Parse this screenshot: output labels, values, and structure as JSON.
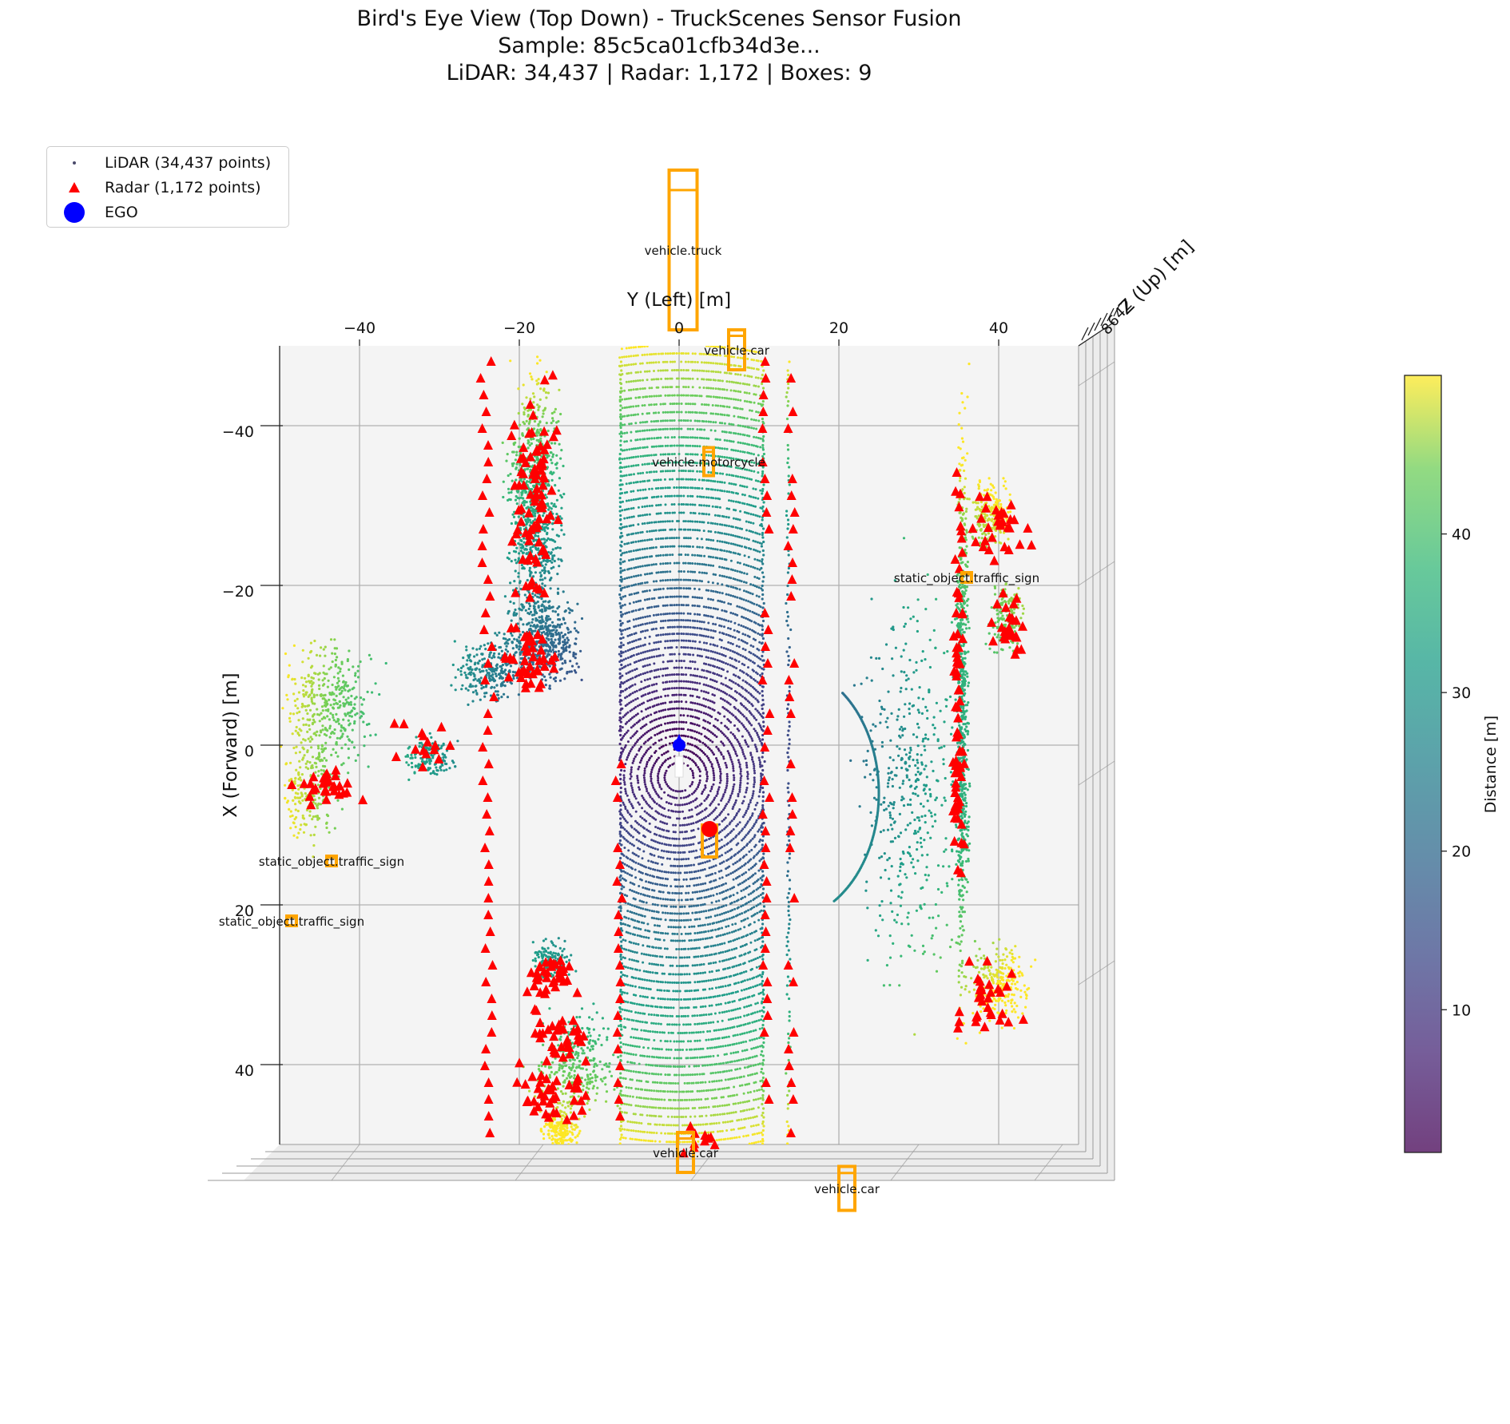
{
  "title_lines": [
    "Bird's Eye View (Top Down) - TruckScenes Sensor Fusion",
    "Sample: 85c5ca01cfb34d3e...",
    "LiDAR: 34,437 | Radar: 1,172 | Boxes: 9"
  ],
  "legend": {
    "placement": "top-left",
    "items": [
      {
        "label": "LiDAR (34,437 points)",
        "marker": "dot",
        "color": "#4a4a6a"
      },
      {
        "label": "Radar (1,172 points)",
        "marker": "triangle",
        "color": "#ff0000"
      },
      {
        "label": "EGO",
        "marker": "circle",
        "color": "#0000ff"
      }
    ]
  },
  "chart_data": {
    "type": "scatter",
    "view": "top-down 3D",
    "xlabel": "Y (Left) [m]",
    "ylabel": "X (Forward) [m]",
    "zlabel": "Z (Up) [m]",
    "y_left_range": [
      -50,
      50
    ],
    "x_forward_range": [
      -50,
      50
    ],
    "y_left_ticks": [
      -40,
      -20,
      0,
      20,
      40
    ],
    "x_forward_ticks": [
      -40,
      -20,
      0,
      20,
      40
    ],
    "z_tick_labels": [
      "2",
      "4",
      "6",
      "8"
    ],
    "grid": true,
    "colorbar": {
      "label": "Distance [m]",
      "range": [
        1,
        50
      ],
      "ticks": [
        10,
        20,
        30,
        40
      ],
      "colormap": "viridis"
    },
    "colors": {
      "radar": "#ff0000",
      "box": "#ffa500",
      "ego": "#0000ff",
      "pane": "#f4f4f4",
      "grid": "#b0b0b0"
    },
    "counts": {
      "lidar": "34,437",
      "radar": "1,172",
      "boxes": "9"
    },
    "boxes": [
      {
        "label": "vehicle.truck",
        "y": 0.5,
        "x": -62,
        "w": 3.5,
        "l": 20
      },
      {
        "label": "vehicle.car",
        "y": 7.2,
        "x": -49.5,
        "w": 2,
        "l": 5
      },
      {
        "label": "vehicle.motorcycle",
        "y": 3.7,
        "x": -35.5,
        "w": 1.2,
        "l": 3.5
      },
      {
        "label": "static_object.traffic_sign",
        "y": 36,
        "x": -21,
        "w": 1.2,
        "l": 1.2
      },
      {
        "label": "static_object.traffic_sign",
        "y": -43.5,
        "x": 14.5,
        "w": 1.2,
        "l": 1.2
      },
      {
        "label": "static_object.traffic_sign",
        "y": -48.5,
        "x": 22,
        "w": 1.2,
        "l": 1.2
      },
      {
        "label": "vehicle.car",
        "y": 0.8,
        "x": 51,
        "w": 2,
        "l": 5
      },
      {
        "label": "vehicle.car",
        "y": 21,
        "x": 55.5,
        "w": 2,
        "l": 5.5
      },
      {
        "label": "",
        "y": 3.8,
        "x": 12,
        "w": 1.8,
        "l": 4
      }
    ],
    "ego": {
      "label": "EGO",
      "x": 0,
      "y": 0
    }
  }
}
